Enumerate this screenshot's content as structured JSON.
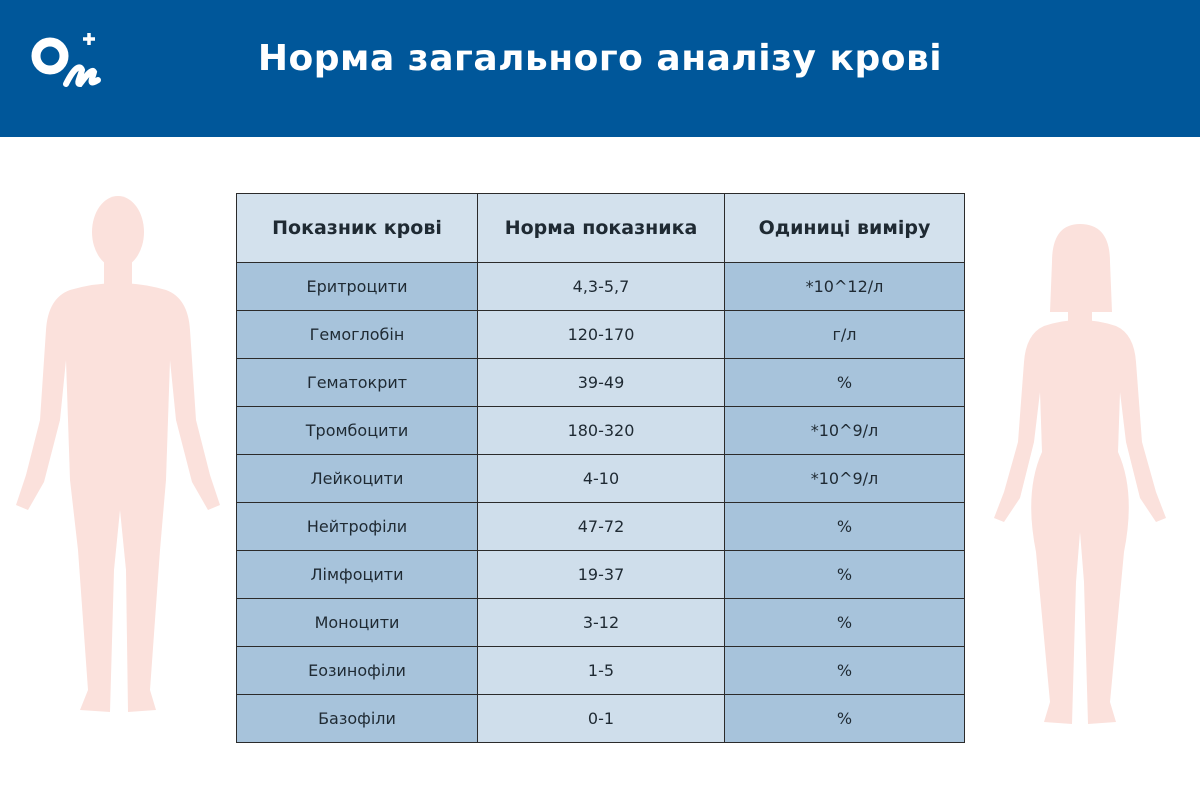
{
  "header": {
    "title": "Норма загального аналізу крові",
    "logo_text": "On+"
  },
  "table": {
    "columns": [
      "Показник крові",
      "Норма показника",
      "Одиниці виміру"
    ],
    "rows": [
      [
        "Еритроцити",
        "4,3-5,7",
        "*10^12/л"
      ],
      [
        "Гемоглобін",
        "120-170",
        "г/л"
      ],
      [
        "Гематокрит",
        "39-49",
        "%"
      ],
      [
        "Тромбоцити",
        "180-320",
        "*10^9/л"
      ],
      [
        "Лейкоцити",
        "4-10",
        "*10^9/л"
      ],
      [
        "Нейтрофіли",
        "47-72",
        "%"
      ],
      [
        "Лімфоцити",
        "19-37",
        "%"
      ],
      [
        "Моноцити",
        "3-12",
        "%"
      ],
      [
        "Еозинофіли",
        "1-5",
        "%"
      ],
      [
        "Базофіли",
        "0-1",
        "%"
      ]
    ]
  },
  "colors": {
    "banner": "#00579a",
    "silhouette": "#fbe1dc",
    "cell_dark": "#a7c3db",
    "cell_light": "#cfdeeb",
    "header_cell": "#d3e1ed"
  }
}
